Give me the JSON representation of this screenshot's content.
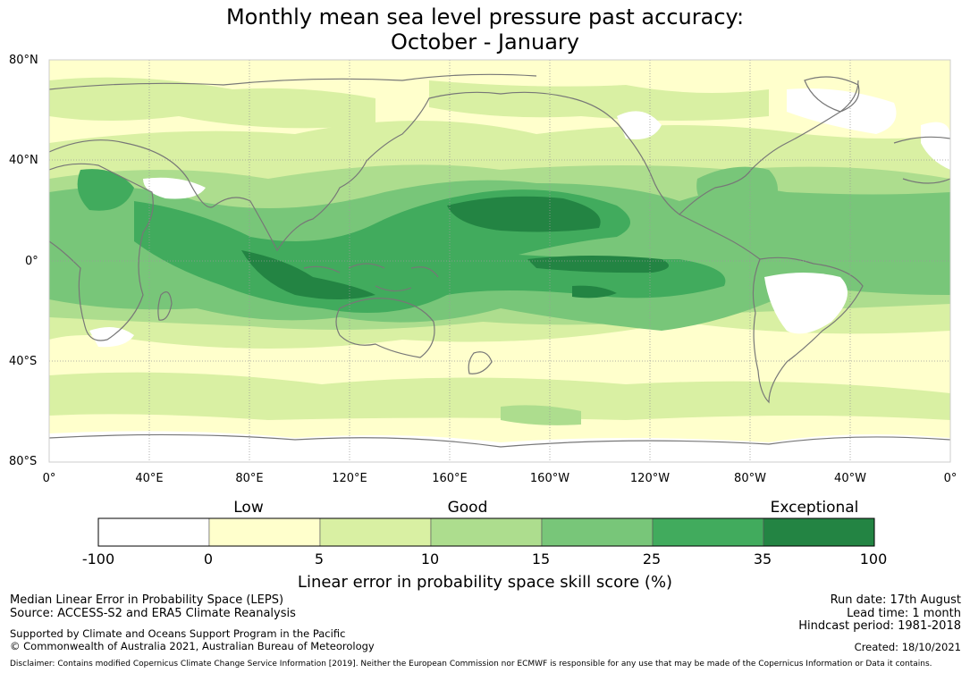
{
  "title": {
    "line1": "Monthly mean sea level pressure past accuracy:",
    "line2": "October - January"
  },
  "map": {
    "lat_labels": [
      "80°N",
      "40°N",
      "0°",
      "40°S",
      "80°S"
    ],
    "lon_labels": [
      "0°",
      "40°E",
      "80°E",
      "120°E",
      "160°E",
      "160°W",
      "120°W",
      "80°W",
      "40°W",
      "0°"
    ],
    "ocean_mask_color": "#ffffff",
    "coastline_color": "#777777",
    "gridline_color": "#999999"
  },
  "colorbar": {
    "categories": [
      "Low",
      "Good",
      "Exceptional"
    ],
    "tick_labels": [
      "-100",
      "0",
      "5",
      "10",
      "15",
      "25",
      "35",
      "100"
    ],
    "colors": [
      "#ffffff",
      "#ffffcc",
      "#d9f0a3",
      "#addd8e",
      "#78c679",
      "#41ab5d",
      "#238443"
    ],
    "title": "Linear error in probability space skill score (%)"
  },
  "footer": {
    "left1": "Median Linear Error in Probability Space (LEPS)",
    "left2": "Source: ACCESS-S2 and ERA5 Climate Reanalysis",
    "left3": "Supported by Climate and Oceans Support Program in the Pacific",
    "left4": "© Commonwealth of Australia 2021, Australian Bureau of Meteorology",
    "right1": "Run date: 17th August",
    "right2": "Lead time: 1 month",
    "right3": "Hindcast period: 1981-2018",
    "right4": "Created: 18/10/2021",
    "disclaimer": "Disclaimer: Contains modified Copernicus Climate Change Service Information [2019]. Neither the European Commission nor ECMWF is responsible for any use that may be made of the Copernicus Information or Data it contains."
  }
}
